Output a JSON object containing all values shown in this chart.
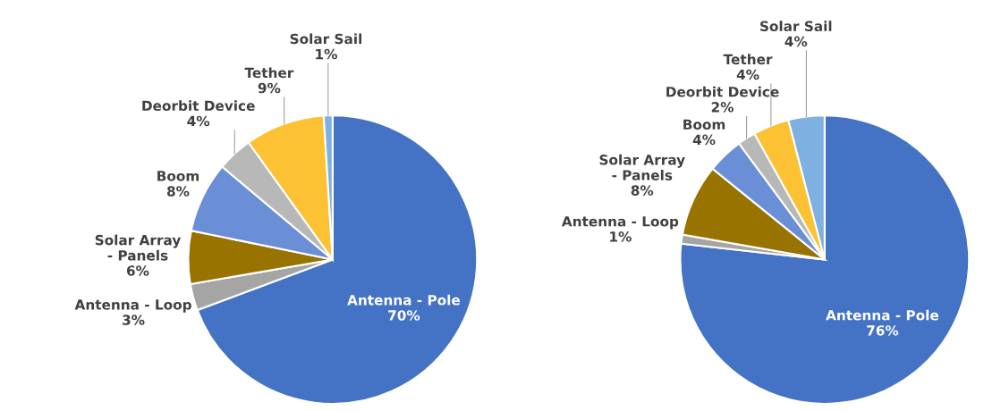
{
  "chart_data": [
    {
      "type": "pie",
      "categories": [
        "Antenna - Pole",
        "Antenna - Loop",
        "Solar Array - Panels",
        "Boom",
        "Deorbit Device",
        "Tether",
        "Solar Sail"
      ],
      "values": [
        70,
        3,
        6,
        8,
        4,
        9,
        1
      ],
      "value_labels": [
        "70%",
        "3%",
        "6%",
        "8%",
        "4%",
        "9%",
        "1%"
      ],
      "colors": [
        "#4472c4",
        "#a5a5a5",
        "#987300",
        "#6a8fd6",
        "#b8b8b8",
        "#fcc233",
        "#7fb0e2"
      ]
    },
    {
      "type": "pie",
      "categories": [
        "Antenna - Pole",
        "Antenna - Loop",
        "Solar Array - Panels",
        "Boom",
        "Deorbit Device",
        "Tether",
        "Solar Sail"
      ],
      "values": [
        76,
        1,
        8,
        4,
        2,
        4,
        4
      ],
      "value_labels": [
        "76%",
        "1%",
        "8%",
        "4%",
        "2%",
        "4%",
        "4%"
      ],
      "colors": [
        "#4472c4",
        "#a5a5a5",
        "#987300",
        "#6a8fd6",
        "#b8b8b8",
        "#fcc233",
        "#7fb0e2"
      ]
    }
  ]
}
